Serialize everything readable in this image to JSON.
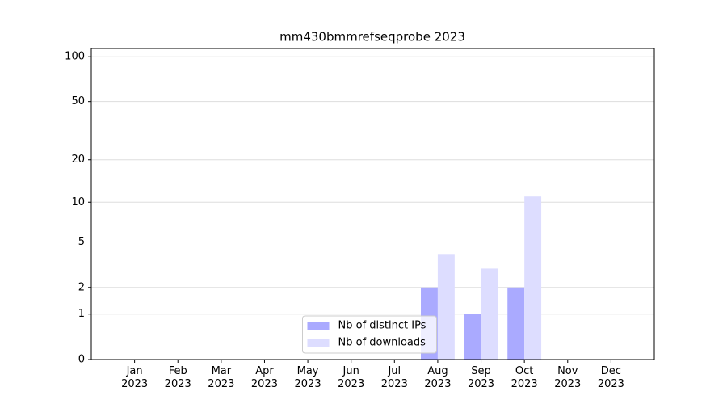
{
  "chart_data": {
    "type": "bar",
    "title": "mm430bmmrefseqprobe 2023",
    "categories": [
      "Jan\n2023",
      "Feb\n2023",
      "Mar\n2023",
      "Apr\n2023",
      "May\n2023",
      "Jun\n2023",
      "Jul\n2023",
      "Aug\n2023",
      "Sep\n2023",
      "Oct\n2023",
      "Nov\n2023",
      "Dec\n2023"
    ],
    "series": [
      {
        "name": "Nb of distinct IPs",
        "color": "#aaaaff",
        "values": [
          0,
          0,
          0,
          0,
          0,
          0,
          0,
          2,
          1,
          2,
          0,
          0
        ]
      },
      {
        "name": "Nb of downloads",
        "color": "#ddddff",
        "values": [
          0,
          0,
          0,
          0,
          0,
          0,
          0,
          4,
          3,
          11,
          0,
          0
        ]
      }
    ],
    "yscale": "log1p",
    "ylim": [
      0,
      113.5
    ],
    "yticks": [
      0,
      1,
      2,
      5,
      10,
      20,
      50,
      100
    ],
    "grid": true,
    "legend": "lower center"
  }
}
